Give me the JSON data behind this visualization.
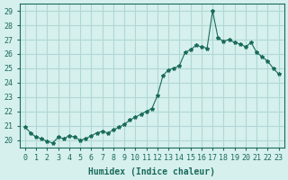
{
  "xlabel": "Humidex (Indice chaleur)",
  "ylabel": "",
  "x_values": [
    0,
    0.5,
    1,
    1.5,
    2,
    2.5,
    3,
    3.5,
    4,
    4.5,
    5,
    5.5,
    6,
    6.5,
    7,
    7.5,
    8,
    8.5,
    9,
    9.5,
    10,
    10.5,
    11,
    11.5,
    12,
    12.5,
    13,
    13.5,
    14,
    14.5,
    15,
    15.5,
    16,
    16.5,
    17,
    17.5,
    18,
    18.5,
    19,
    19.5,
    20,
    20.5,
    21,
    21.5,
    22,
    22.5,
    23
  ],
  "y_values": [
    20.9,
    20.5,
    20.2,
    20.1,
    19.9,
    19.8,
    20.2,
    20.1,
    20.3,
    20.2,
    20.0,
    20.1,
    20.3,
    20.5,
    20.6,
    20.5,
    20.7,
    20.9,
    21.1,
    21.4,
    21.6,
    21.8,
    22.0,
    22.2,
    23.1,
    24.5,
    24.9,
    25.0,
    25.2,
    26.1,
    26.3,
    26.6,
    26.5,
    26.4,
    29.0,
    27.1,
    26.9,
    27.0,
    26.8,
    26.7,
    26.5,
    26.8,
    26.1,
    25.8,
    25.5,
    25.0,
    24.6
  ],
  "line_color": "#1a6b5a",
  "marker": "*",
  "marker_size": 3,
  "bg_color": "#d6f0ee",
  "grid_color": "#b0d8d4",
  "axis_color": "#1a6b5a",
  "xlim": [
    -0.5,
    23.5
  ],
  "ylim": [
    19.5,
    29.5
  ],
  "yticks": [
    20,
    21,
    22,
    23,
    24,
    25,
    26,
    27,
    28,
    29
  ],
  "xticks": [
    0,
    1,
    2,
    3,
    4,
    5,
    6,
    7,
    8,
    9,
    10,
    11,
    12,
    13,
    14,
    15,
    16,
    17,
    18,
    19,
    20,
    21,
    22,
    23
  ],
  "tick_fontsize": 6,
  "xlabel_fontsize": 7
}
